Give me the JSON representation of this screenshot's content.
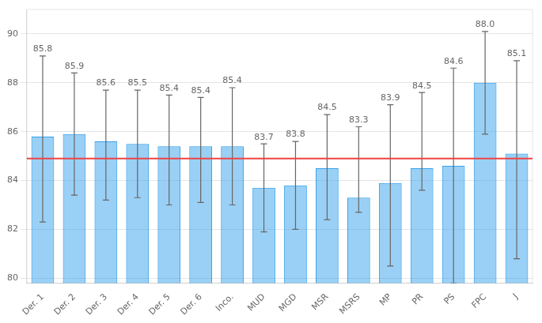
{
  "chart_data": {
    "type": "bar",
    "categories": [
      "Der. 1",
      "Der. 2",
      "Der. 3",
      "Der. 4",
      "Der. 5",
      "Der. 6",
      "Inco.",
      "MUD",
      "MGD",
      "MSR",
      "MSRS",
      "MP",
      "PR",
      "PS",
      "FPC",
      "J"
    ],
    "values": [
      85.8,
      85.9,
      85.6,
      85.5,
      85.4,
      85.4,
      85.4,
      83.7,
      83.8,
      84.5,
      83.3,
      83.9,
      84.5,
      84.6,
      88.0,
      85.1
    ],
    "value_labels": [
      "85.8",
      "85.9",
      "85.6",
      "85.5",
      "85.4",
      "85.4",
      "85.4",
      "83.7",
      "83.8",
      "84.5",
      "83.3",
      "83.9",
      "84.5",
      "84.6",
      "88.0",
      "85.1"
    ],
    "err_upper": [
      3.3,
      2.5,
      2.1,
      2.2,
      2.1,
      2.0,
      2.4,
      1.8,
      1.8,
      2.2,
      2.9,
      3.2,
      3.1,
      4.0,
      2.1,
      3.8
    ],
    "err_lower": [
      3.5,
      2.5,
      2.4,
      2.2,
      2.4,
      2.3,
      2.4,
      1.8,
      1.8,
      2.1,
      0.6,
      3.4,
      0.9,
      4.8,
      2.1,
      4.3
    ],
    "baseline": {
      "value": 84.9,
      "color": "#EE4444"
    },
    "ylim": [
      79.8,
      91.0
    ],
    "yticks": [
      80,
      82,
      84,
      86,
      88,
      90
    ],
    "grid": true,
    "data_labels": true
  }
}
